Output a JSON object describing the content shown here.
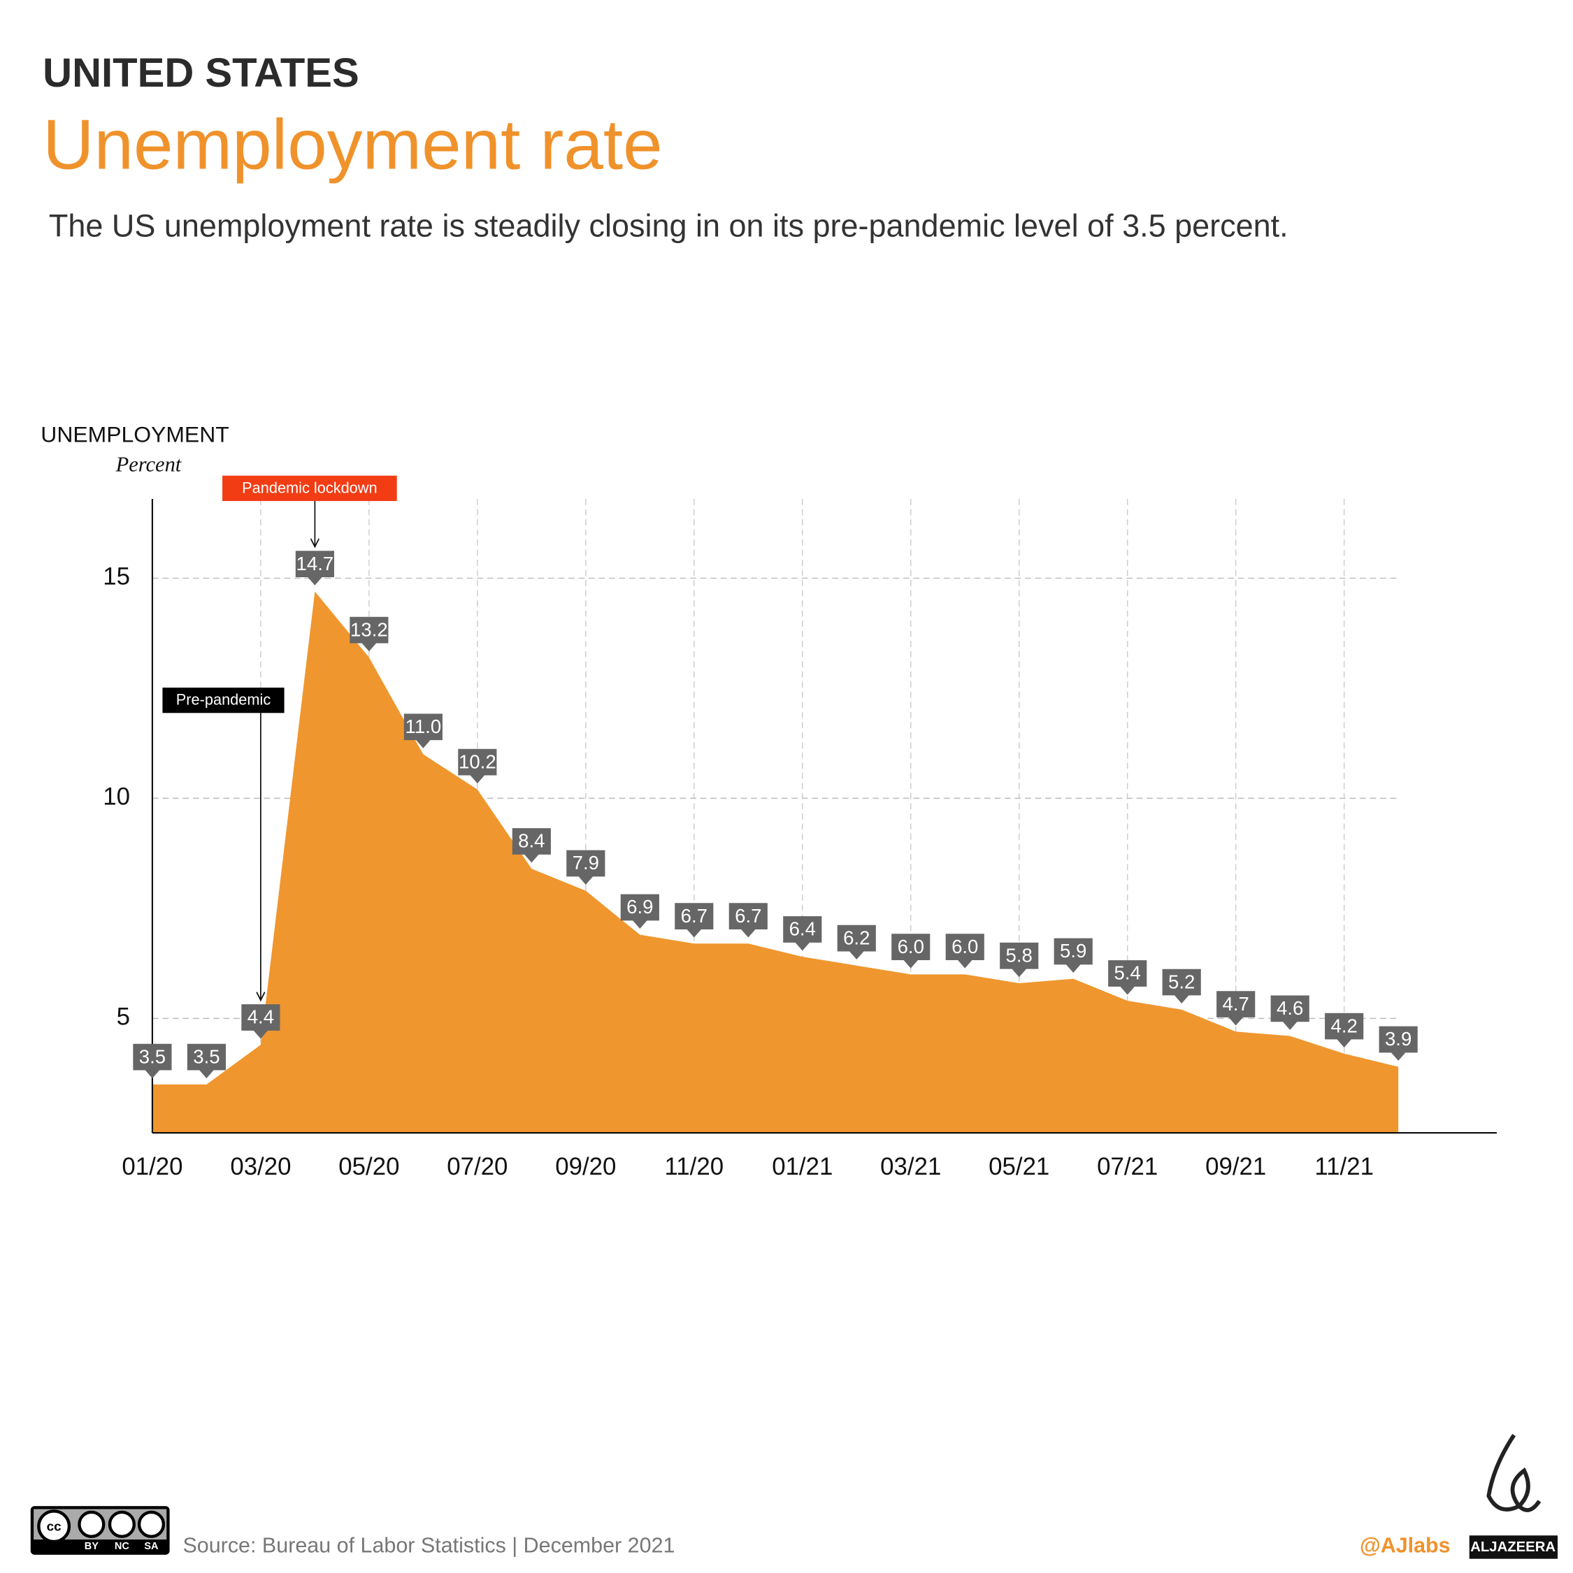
{
  "header": {
    "kicker": "UNITED STATES",
    "title": "Unemployment rate",
    "description": "The US unemployment rate is steadily closing in on its pre-pandemic level of 3.5 percent."
  },
  "chart_data": {
    "type": "area",
    "y_label": "UNEMPLOYMENT",
    "y_unit": "Percent",
    "color": "#f0962e",
    "label_color": "#666666",
    "categories": [
      "01/20",
      null,
      "03/20",
      null,
      "05/20",
      null,
      "07/20",
      null,
      "09/20",
      null,
      "11/20",
      null,
      "01/21",
      null,
      "03/21",
      null,
      "05/21",
      null,
      "07/21",
      null,
      "09/21",
      null,
      "11/21",
      null
    ],
    "values": [
      3.5,
      3.5,
      4.4,
      14.7,
      13.2,
      11.0,
      10.2,
      8.4,
      7.9,
      6.9,
      6.7,
      6.7,
      6.4,
      6.2,
      6.0,
      6.0,
      5.8,
      5.9,
      5.4,
      5.2,
      4.7,
      4.6,
      4.2,
      3.9
    ],
    "value_labels": [
      "3.5",
      "3.5",
      "4.4",
      "14.7",
      "13.2",
      "11.0",
      "10.2",
      "8.4",
      "7.9",
      "6.9",
      "6.7",
      "6.7",
      "6.4",
      "6.2",
      "6.0",
      "6.0",
      "5.8",
      "5.9",
      "5.4",
      "5.2",
      "4.7",
      "4.6",
      "4.2",
      "3.9"
    ],
    "ylim": [
      2.4,
      16.8
    ],
    "yticks": [
      5,
      10,
      15
    ],
    "grid": true,
    "annotations": [
      {
        "text": "Pre-pandemic",
        "color": "#000000"
      },
      {
        "text": "Pandemic lockdown",
        "color": "#f23c13"
      }
    ]
  },
  "footer": {
    "source": "Source: Bureau of Labor Statistics | December 2021",
    "handle": "@AJlabs",
    "brand": "ALJAZEERA",
    "license": [
      "BY",
      "NC",
      "SA"
    ]
  }
}
